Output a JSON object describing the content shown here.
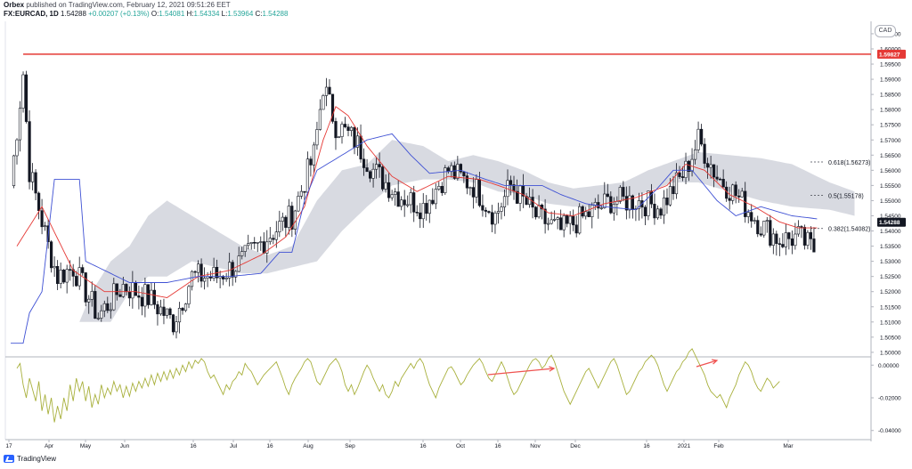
{
  "header": {
    "line1_author": "Orbex",
    "line1_text": "published on TradingView.com, February 12, 2021 09:51:26 EET",
    "symbol": "FX:EURCAD, 1D",
    "last": "1.54288",
    "change": "+0.00207 (+0.13%)",
    "o_label": "O:",
    "o_value": "1.54081",
    "h_label": "H:",
    "h_value": "1.54334",
    "l_label": "L:",
    "l_value": "1.53964",
    "c_label": "C:",
    "c_value": "1.54288"
  },
  "currency_badge": "CAD",
  "footer": {
    "brand": "TradingView"
  },
  "colors": {
    "up_candle": "#ffffff",
    "down_candle": "#131722",
    "tenkan": "#e53935",
    "kijun": "#3f51d4",
    "cloud": "#d1d4dc",
    "resistance": "#e53935",
    "oscillator": "#a8b03c",
    "arrow": "#ef5350",
    "price_badge": "#131722"
  },
  "chart_data": [
    {
      "type": "candlestick",
      "symbol": "FX:EURCAD",
      "timeframe": "1D",
      "y_axis": {
        "ylim": [
          1.4985,
          1.6085
        ],
        "ticks": [
          "1.60500",
          "1.60000",
          "1.59500",
          "1.59000",
          "1.58500",
          "1.58000",
          "1.57500",
          "1.57000",
          "1.56500",
          "1.56000",
          "1.55500",
          "1.55000",
          "1.54500",
          "1.54000",
          "1.53500",
          "1.53000",
          "1.52500",
          "1.52000",
          "1.51500",
          "1.51000",
          "1.50500",
          "1.50000"
        ]
      },
      "x_axis": {
        "ticks": [
          "17",
          "Apr",
          "May",
          "Jun",
          "16",
          "Jul",
          "16",
          "Aug",
          "Sep",
          "16",
          "Oct",
          "16",
          "Nov",
          "Dec",
          "16",
          "2021",
          "Feb",
          "Mar"
        ]
      },
      "resistance_line": {
        "value": 1.59827,
        "label": "1.59827"
      },
      "current_price": {
        "value": 1.54288,
        "label": "1.54288"
      },
      "fibonacci_levels": [
        {
          "ratio": "0.618",
          "value": 1.56273,
          "label": "0.618(1.56273)"
        },
        {
          "ratio": "0.5",
          "value": 1.55178,
          "label": "0.5(1.55178)"
        },
        {
          "ratio": "0.382",
          "value": 1.54082,
          "label": "0.382(1.54082)"
        }
      ],
      "series_anchor_close": [
        [
          0,
          1.555
        ],
        [
          4,
          1.592
        ],
        [
          6,
          1.56
        ],
        [
          12,
          1.535
        ],
        [
          15,
          1.525
        ],
        [
          20,
          1.528
        ],
        [
          28,
          1.512
        ],
        [
          36,
          1.522
        ],
        [
          44,
          1.518
        ],
        [
          52,
          1.51
        ],
        [
          58,
          1.525
        ],
        [
          66,
          1.525
        ],
        [
          74,
          1.53
        ],
        [
          82,
          1.538
        ],
        [
          90,
          1.545
        ],
        [
          97,
          1.565
        ],
        [
          100,
          1.588
        ],
        [
          104,
          1.575
        ],
        [
          110,
          1.57
        ],
        [
          116,
          1.56
        ],
        [
          124,
          1.552
        ],
        [
          132,
          1.548
        ],
        [
          140,
          1.56
        ],
        [
          148,
          1.555
        ],
        [
          155,
          1.545
        ],
        [
          160,
          1.555
        ],
        [
          168,
          1.545
        ],
        [
          176,
          1.54
        ],
        [
          184,
          1.545
        ],
        [
          192,
          1.55
        ],
        [
          200,
          1.55
        ],
        [
          208,
          1.548
        ],
        [
          216,
          1.56
        ],
        [
          220,
          1.57
        ],
        [
          226,
          1.558
        ],
        [
          232,
          1.552
        ],
        [
          240,
          1.542
        ],
        [
          246,
          1.537
        ],
        [
          252,
          1.538
        ],
        [
          258,
          1.533
        ]
      ],
      "tenkan_anchor": [
        [
          2,
          1.535
        ],
        [
          10,
          1.548
        ],
        [
          20,
          1.527
        ],
        [
          30,
          1.52
        ],
        [
          40,
          1.52
        ],
        [
          50,
          1.518
        ],
        [
          60,
          1.525
        ],
        [
          70,
          1.527
        ],
        [
          80,
          1.532
        ],
        [
          88,
          1.538
        ],
        [
          94,
          1.548
        ],
        [
          100,
          1.57
        ],
        [
          104,
          1.581
        ],
        [
          108,
          1.578
        ],
        [
          114,
          1.568
        ],
        [
          122,
          1.558
        ],
        [
          130,
          1.553
        ],
        [
          140,
          1.558
        ],
        [
          150,
          1.557
        ],
        [
          156,
          1.555
        ],
        [
          164,
          1.552
        ],
        [
          172,
          1.546
        ],
        [
          180,
          1.545
        ],
        [
          190,
          1.549
        ],
        [
          200,
          1.551
        ],
        [
          210,
          1.555
        ],
        [
          216,
          1.562
        ],
        [
          222,
          1.56
        ],
        [
          230,
          1.552
        ],
        [
          238,
          1.548
        ],
        [
          246,
          1.543
        ],
        [
          252,
          1.541
        ],
        [
          258,
          1.541
        ]
      ],
      "kijun_anchor": [
        [
          0,
          1.503
        ],
        [
          4,
          1.503
        ],
        [
          6,
          1.513
        ],
        [
          10,
          1.52
        ],
        [
          14,
          1.557
        ],
        [
          22,
          1.557
        ],
        [
          24,
          1.53
        ],
        [
          38,
          1.523
        ],
        [
          50,
          1.523
        ],
        [
          60,
          1.525
        ],
        [
          70,
          1.525
        ],
        [
          80,
          1.526
        ],
        [
          86,
          1.533
        ],
        [
          90,
          1.533
        ],
        [
          94,
          1.55
        ],
        [
          98,
          1.56
        ],
        [
          106,
          1.565
        ],
        [
          114,
          1.57
        ],
        [
          122,
          1.572
        ],
        [
          128,
          1.565
        ],
        [
          134,
          1.559
        ],
        [
          144,
          1.56
        ],
        [
          152,
          1.557
        ],
        [
          158,
          1.555
        ],
        [
          170,
          1.555
        ],
        [
          176,
          1.552
        ],
        [
          184,
          1.549
        ],
        [
          190,
          1.548
        ],
        [
          200,
          1.547
        ],
        [
          206,
          1.553
        ],
        [
          212,
          1.56
        ],
        [
          218,
          1.56
        ],
        [
          226,
          1.55
        ],
        [
          232,
          1.545
        ],
        [
          240,
          1.548
        ],
        [
          250,
          1.545
        ],
        [
          258,
          1.544
        ]
      ],
      "cloud_anchor": [
        [
          22,
          1.51,
          1.51
        ],
        [
          26,
          1.52,
          1.51
        ],
        [
          32,
          1.53,
          1.51
        ],
        [
          38,
          1.535,
          1.52
        ],
        [
          44,
          1.545,
          1.525
        ],
        [
          50,
          1.55,
          1.525
        ],
        [
          58,
          1.545,
          1.53
        ],
        [
          66,
          1.54,
          1.528
        ],
        [
          74,
          1.535,
          1.526
        ],
        [
          82,
          1.532,
          1.526
        ],
        [
          90,
          1.535,
          1.528
        ],
        [
          98,
          1.55,
          1.53
        ],
        [
          106,
          1.56,
          1.54
        ],
        [
          114,
          1.562,
          1.548
        ],
        [
          122,
          1.57,
          1.555
        ],
        [
          132,
          1.568,
          1.557
        ],
        [
          140,
          1.563,
          1.557
        ],
        [
          148,
          1.565,
          1.556
        ],
        [
          156,
          1.563,
          1.553
        ],
        [
          164,
          1.56,
          1.552
        ],
        [
          172,
          1.556,
          1.549
        ],
        [
          180,
          1.554,
          1.548
        ],
        [
          188,
          1.555,
          1.548
        ],
        [
          196,
          1.556,
          1.55
        ],
        [
          204,
          1.56,
          1.553
        ],
        [
          212,
          1.563,
          1.556
        ],
        [
          220,
          1.566,
          1.556
        ],
        [
          230,
          1.565,
          1.553
        ],
        [
          240,
          1.564,
          1.55
        ],
        [
          250,
          1.562,
          1.548
        ],
        [
          262,
          1.556,
          1.547
        ],
        [
          270,
          1.553,
          1.545
        ]
      ]
    },
    {
      "type": "line",
      "name": "oscillator",
      "y_axis": {
        "ylim": [
          -0.0445,
          0.0045
        ],
        "ticks": [
          "0.00000",
          "-0.02000",
          "-0.04000"
        ]
      },
      "values": [
        -0.002,
        0.001,
        -0.012,
        -0.02,
        -0.008,
        -0.015,
        -0.022,
        -0.01,
        -0.028,
        -0.018,
        -0.03,
        -0.02,
        -0.035,
        -0.025,
        -0.033,
        -0.02,
        -0.028,
        -0.012,
        -0.022,
        -0.008,
        -0.016,
        -0.01,
        -0.022,
        -0.013,
        -0.026,
        -0.018,
        -0.024,
        -0.012,
        -0.02,
        -0.014,
        -0.018,
        -0.01,
        -0.016,
        -0.012,
        -0.02,
        -0.013,
        -0.019,
        -0.011,
        -0.016,
        -0.01,
        -0.014,
        -0.008,
        -0.013,
        -0.006,
        -0.012,
        -0.005,
        -0.01,
        -0.004,
        -0.009,
        -0.003,
        -0.008,
        -0.002,
        -0.006,
        0.0,
        -0.004,
        0.002,
        -0.002,
        0.003,
        0.001,
        0.004,
        0.002,
        -0.004,
        -0.008,
        -0.006,
        -0.01,
        -0.014,
        -0.018,
        -0.012,
        -0.015,
        -0.01,
        -0.008,
        -0.004,
        -0.006,
        0.001,
        -0.002,
        -0.004,
        -0.008,
        -0.012,
        -0.009,
        -0.006,
        -0.004,
        -0.002,
        0.0,
        0.002,
        -0.003,
        -0.008,
        -0.014,
        -0.018,
        -0.012,
        -0.008,
        -0.005,
        -0.002,
        0.002,
        0.004,
        0.002,
        -0.004,
        -0.01,
        -0.012,
        -0.008,
        -0.004,
        0.0,
        0.002,
        0.004,
        0.001,
        -0.004,
        -0.012,
        -0.016,
        -0.012,
        -0.018,
        -0.014,
        -0.009,
        -0.004,
        0.0,
        -0.003,
        -0.008,
        -0.012,
        -0.016,
        -0.012,
        -0.018,
        -0.02,
        -0.016,
        -0.01,
        -0.013,
        -0.008,
        -0.005,
        -0.002,
        0.001,
        -0.002,
        0.002,
        0.004,
        0.001,
        -0.006,
        -0.012,
        -0.016,
        -0.02,
        -0.014,
        -0.01,
        -0.006,
        -0.002,
        -0.001,
        -0.004,
        -0.008,
        -0.012,
        -0.01,
        -0.006,
        -0.003,
        0.0,
        0.002,
        0.004,
        0.001,
        -0.004,
        -0.008,
        -0.01,
        -0.006,
        -0.002,
        0.002,
        -0.002,
        -0.008,
        -0.014,
        -0.018,
        -0.016,
        -0.012,
        -0.008,
        -0.004,
        0.0,
        0.003,
        0.004,
        0.002,
        -0.002,
        0.0,
        0.004,
        0.006,
        0.002,
        -0.004,
        -0.01,
        -0.016,
        -0.02,
        -0.024,
        -0.02,
        -0.016,
        -0.012,
        -0.008,
        -0.004,
        -0.002,
        -0.006,
        -0.01,
        -0.014,
        -0.01,
        -0.006,
        -0.002,
        0.002,
        0.004,
        0.0,
        -0.006,
        -0.012,
        -0.018,
        -0.016,
        -0.012,
        -0.008,
        -0.004,
        -0.002,
        0.002,
        0.004,
        0.006,
        0.004,
        0.0,
        -0.006,
        -0.012,
        -0.016,
        -0.012,
        -0.008,
        -0.004,
        -0.002,
        0.002,
        0.004,
        0.008,
        0.01,
        0.006,
        0.002,
        -0.002,
        -0.006,
        -0.012,
        -0.016,
        -0.018,
        -0.02,
        -0.018,
        -0.022,
        -0.026,
        -0.02,
        -0.016,
        -0.012,
        -0.006,
        -0.002,
        0.002,
        0.0,
        -0.004,
        -0.01,
        -0.014,
        -0.016,
        -0.012,
        -0.008,
        -0.01,
        -0.014,
        -0.012,
        -0.01
      ]
    }
  ]
}
